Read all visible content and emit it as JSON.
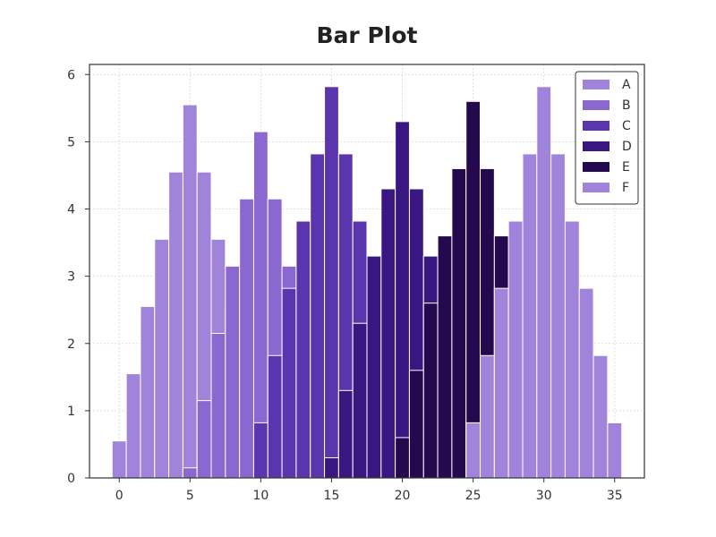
{
  "chart_data": {
    "type": "bar",
    "title": "Bar Plot",
    "xlabel": "",
    "ylabel": "",
    "xlim": [
      -2.1,
      37.1
    ],
    "ylim": [
      0,
      6.15
    ],
    "xticks": [
      0,
      5,
      10,
      15,
      20,
      25,
      30,
      35
    ],
    "yticks": [
      0,
      1,
      2,
      3,
      4,
      5,
      6
    ],
    "grid": true,
    "legend_position": "top-right",
    "bar_width": 1,
    "series": [
      {
        "name": "A",
        "color": "#a084dc",
        "x": [
          0,
          1,
          2,
          3,
          4,
          5,
          6,
          7,
          8,
          9,
          10
        ],
        "values": [
          0.55,
          1.55,
          2.55,
          3.55,
          4.55,
          5.55,
          4.55,
          3.55,
          2.55,
          1.55,
          0.55
        ]
      },
      {
        "name": "B",
        "color": "#8b67d0",
        "x": [
          5,
          6,
          7,
          8,
          9,
          10,
          11,
          12,
          13,
          14,
          15
        ],
        "values": [
          0.15,
          1.15,
          2.15,
          3.15,
          4.15,
          5.15,
          4.15,
          3.15,
          2.15,
          1.15,
          0.15
        ]
      },
      {
        "name": "C",
        "color": "#5b35ae",
        "x": [
          10,
          11,
          12,
          13,
          14,
          15,
          16,
          17,
          18,
          19,
          20
        ],
        "values": [
          0.82,
          1.82,
          2.82,
          3.82,
          4.82,
          5.82,
          4.82,
          3.82,
          2.82,
          1.82,
          0.82
        ]
      },
      {
        "name": "D",
        "color": "#3a1680",
        "x": [
          15,
          16,
          17,
          18,
          19,
          20,
          21,
          22,
          23,
          24,
          25
        ],
        "values": [
          0.3,
          1.3,
          2.3,
          3.3,
          4.3,
          5.3,
          4.3,
          3.3,
          2.3,
          1.3,
          0.3
        ]
      },
      {
        "name": "E",
        "color": "#24094f",
        "x": [
          20,
          21,
          22,
          23,
          24,
          25,
          26,
          27,
          28,
          29,
          30
        ],
        "values": [
          0.6,
          1.6,
          2.6,
          3.6,
          4.6,
          5.6,
          4.6,
          3.6,
          2.6,
          1.6,
          0.6
        ]
      },
      {
        "name": "F",
        "color": "#a084dc",
        "x": [
          25,
          26,
          27,
          28,
          29,
          30,
          31,
          32,
          33,
          34,
          35
        ],
        "values": [
          0.82,
          1.82,
          2.82,
          3.82,
          4.82,
          5.82,
          4.82,
          3.82,
          2.82,
          1.82,
          0.82
        ]
      }
    ]
  }
}
